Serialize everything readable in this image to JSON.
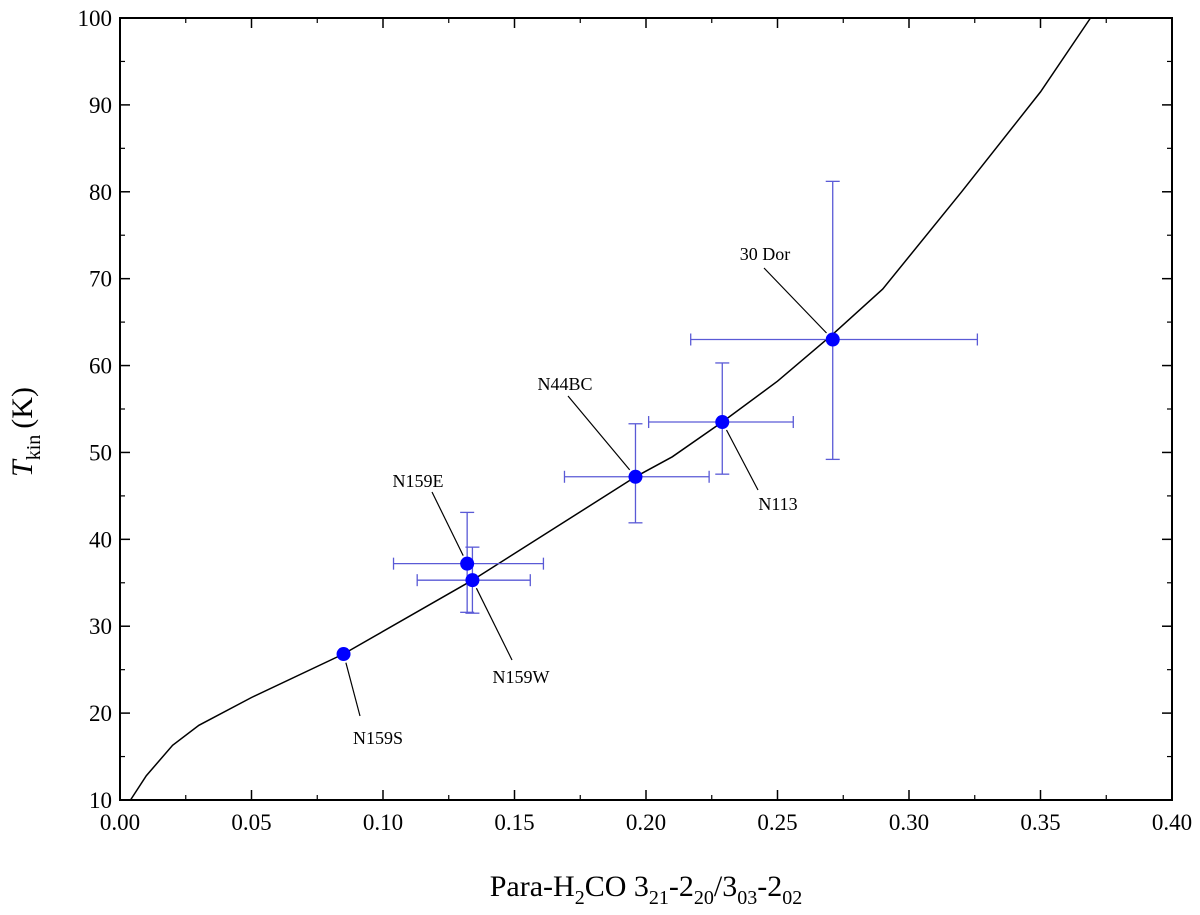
{
  "chart_data": {
    "type": "scatter",
    "xlabel": {
      "prefix": "Para-H",
      "sub1": "2",
      "mid1": "CO 3",
      "sub2": "21",
      "mid2": "-2",
      "sub3": "20",
      "mid3": "/3",
      "sub4": "03",
      "mid4": "-2",
      "sub5": "02"
    },
    "ylabel": {
      "main": "T",
      "sub": "kin",
      "unit": "(K)"
    },
    "xlim": [
      0.0,
      0.4
    ],
    "ylim": [
      10,
      100
    ],
    "xticks": [
      "0.00",
      "0.05",
      "0.10",
      "0.15",
      "0.20",
      "0.25",
      "0.30",
      "0.35",
      "0.40"
    ],
    "yticks": [
      "10",
      "20",
      "30",
      "40",
      "50",
      "60",
      "70",
      "80",
      "90",
      "100"
    ],
    "colors": {
      "points": "#0000ff",
      "errorbars": "#5a5ad6",
      "curve": "#000000"
    },
    "curve": {
      "x": [
        0.004,
        0.01,
        0.02,
        0.03,
        0.05,
        0.085,
        0.134,
        0.196,
        0.21,
        0.229,
        0.25,
        0.271,
        0.29,
        0.32,
        0.35,
        0.369
      ],
      "y": [
        10,
        12.8,
        16.3,
        18.6,
        21.8,
        26.8,
        35.3,
        47.2,
        49.5,
        53.5,
        58.2,
        63.6,
        68.8,
        80.0,
        91.5,
        100
      ]
    },
    "points": [
      {
        "name": "N159S",
        "x": 0.085,
        "y": 26.8,
        "xerr": null,
        "yerr": null
      },
      {
        "name": "N159E",
        "x": 0.132,
        "y": 37.2,
        "xerr": [
          0.104,
          0.161
        ],
        "yerr": [
          31.6,
          43.1
        ]
      },
      {
        "name": "N159W",
        "x": 0.134,
        "y": 35.3,
        "xerr": [
          0.113,
          0.156
        ],
        "yerr": [
          31.5,
          39.1
        ]
      },
      {
        "name": "N44BC",
        "x": 0.196,
        "y": 47.2,
        "xerr": [
          0.169,
          0.224
        ],
        "yerr": [
          41.9,
          53.3
        ]
      },
      {
        "name": "N113",
        "x": 0.229,
        "y": 53.5,
        "xerr": [
          0.201,
          0.256
        ],
        "yerr": [
          47.5,
          60.3
        ]
      },
      {
        "name": "30 Dor",
        "x": 0.271,
        "y": 63.0,
        "xerr": [
          0.217,
          0.326
        ],
        "yerr": [
          49.2,
          81.2
        ]
      }
    ]
  }
}
